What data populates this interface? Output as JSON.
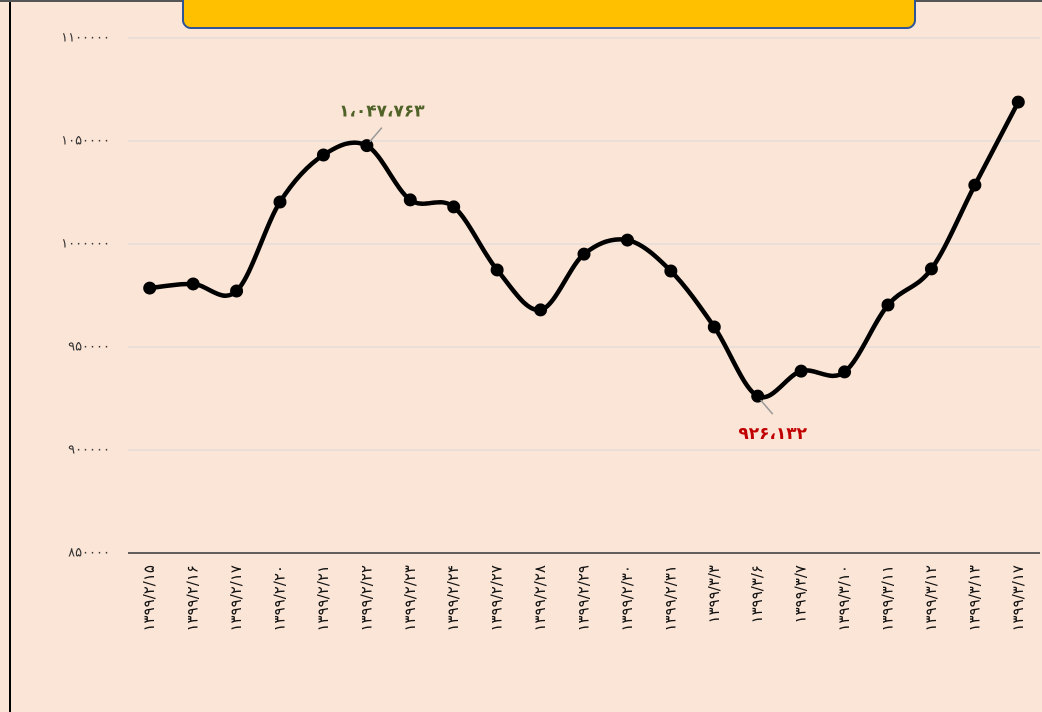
{
  "chart_data": {
    "type": "line",
    "categories": [
      "۱۳۹۹/۲/۱۵",
      "۱۳۹۹/۲/۱۶",
      "۱۳۹۹/۲/۱۷",
      "۱۳۹۹/۲/۲۰",
      "۱۳۹۹/۲/۲۱",
      "۱۳۹۹/۲/۲۲",
      "۱۳۹۹/۲/۲۳",
      "۱۳۹۹/۲/۲۴",
      "۱۳۹۹/۲/۲۷",
      "۱۳۹۹/۲/۲۸",
      "۱۳۹۹/۲/۲۹",
      "۱۳۹۹/۲/۳۰",
      "۱۳۹۹/۲/۳۱",
      "۱۳۹۹/۳/۳",
      "۱۳۹۹/۳/۶",
      "۱۳۹۹/۳/۷",
      "۱۳۹۹/۳/۱۰",
      "۱۳۹۹/۳/۱۱",
      "۱۳۹۹/۳/۱۲",
      "۱۳۹۹/۳/۱۳",
      "۱۳۹۹/۳/۱۷"
    ],
    "values": [
      978600,
      980600,
      977200,
      1020400,
      1043200,
      1047763,
      1021400,
      1018000,
      987400,
      968000,
      995100,
      1001900,
      986900,
      959700,
      926132,
      938300,
      937900,
      970400,
      987900,
      1028600,
      1068900
    ],
    "value_labels": [
      null,
      null,
      null,
      null,
      null,
      "۱،۰۴۷،۷۶۳",
      null,
      null,
      null,
      null,
      null,
      null,
      null,
      null,
      "۹۲۶،۱۳۲",
      null,
      null,
      null,
      null,
      null,
      null
    ],
    "value_label_colors": {
      "5": "#4f6228",
      "14": "#c00000"
    },
    "color": "#000000",
    "ylim": [
      850000,
      1100000
    ],
    "yticks": [
      {
        "value": 850000,
        "label": "۸۵۰۰۰۰"
      },
      {
        "value": 900000,
        "label": "۹۰۰۰۰۰"
      },
      {
        "value": 950000,
        "label": "۹۵۰۰۰۰"
      },
      {
        "value": 1000000,
        "label": "۱۰۰۰۰۰۰"
      },
      {
        "value": 1050000,
        "label": "۱۰۵۰۰۰۰"
      },
      {
        "value": 1100000,
        "label": "۱۱۰۰۰۰۰"
      }
    ],
    "grid": true
  }
}
